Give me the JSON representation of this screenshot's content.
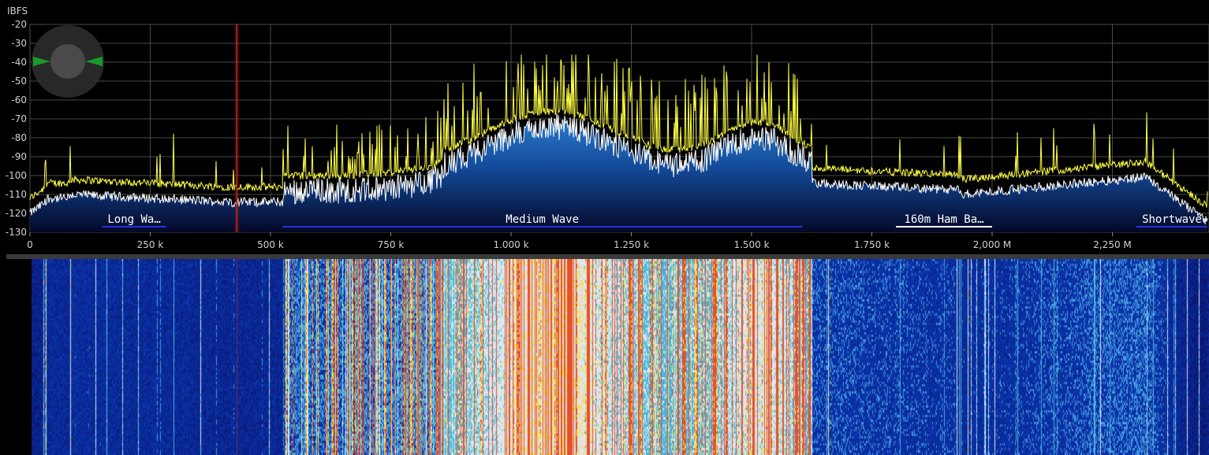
{
  "spectrum": {
    "unit_label": "IBFS",
    "y_ticks": [
      "-20",
      "-30",
      "-40",
      "-50",
      "-60",
      "-70",
      "-80",
      "-90",
      "-100",
      "-110",
      "-120",
      "-130"
    ],
    "x_ticks": [
      "0",
      "250 k",
      "500 k",
      "750 k",
      "1.000 k",
      "1.250 k",
      "1.500 k",
      "1.750 k",
      "2,000 M",
      "2,250 M"
    ],
    "bands": [
      {
        "label": "Long Wa…",
        "start_khz": 150,
        "end_khz": 283,
        "color": "#2233dd"
      },
      {
        "label": "Medium Wave",
        "start_khz": 525,
        "end_khz": 1605,
        "color": "#2233dd"
      },
      {
        "label": "160m Ham Ba…",
        "start_khz": 1800,
        "end_khz": 2000,
        "color": "#ffffff"
      },
      {
        "label": "Shortwave",
        "start_khz": 2300,
        "end_khz": 2450,
        "color": "#2233dd"
      }
    ],
    "marker_khz": 430,
    "y_range_db": [
      -130,
      -20
    ],
    "x_range_khz": [
      0,
      2450
    ]
  },
  "colors": {
    "background": "#000000",
    "grid": "#4a4a4a",
    "peak_trace": "#ffff44",
    "avg_trace": "#ffffff",
    "fill_top": "#2a6fc0",
    "fill_bottom": "#050a30",
    "marker": "#cc2222"
  },
  "zoom_knob": {
    "icon": "zoom-knob-icon"
  }
}
